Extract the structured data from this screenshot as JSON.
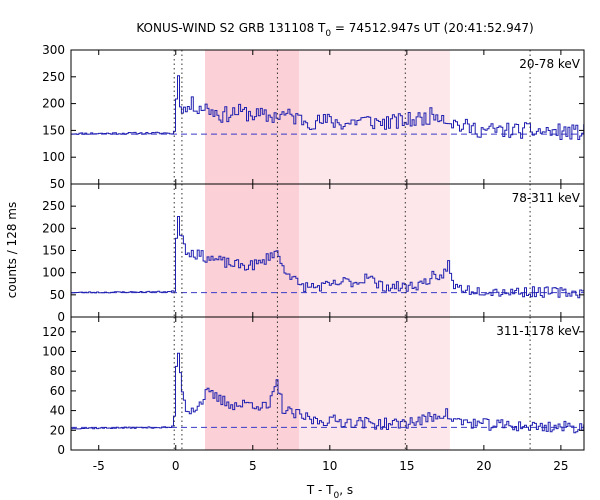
{
  "title": {
    "prefix": "KONUS-WIND S2 GRB 131108 T",
    "sub": "0",
    "suffix": " = 74512.947s UT (20:41:52.947)"
  },
  "xlabel": {
    "prefix": "T - T",
    "sub": "0",
    "suffix": ", s"
  },
  "ylabel": "counts / 128 ms",
  "colors": {
    "curve": "#1f1fb0",
    "background_fit": "#3b3bc8",
    "shade_light": "#fde7ea",
    "shade_dark": "#fbd0d6",
    "vline": "#333333",
    "axis": "#000000"
  },
  "chart_data": {
    "type": "line",
    "xlim": [
      -6.8,
      26.5
    ],
    "xticks": [
      -5,
      0,
      5,
      10,
      15,
      20,
      25
    ],
    "xtick_labels": [
      "-5",
      "0",
      "5",
      "10",
      "15",
      "20",
      "25"
    ],
    "vlines": [
      -0.1,
      0.4,
      6.6,
      14.9,
      23.0
    ],
    "shaded_regions": [
      {
        "x0": 1.9,
        "x1": 17.8,
        "shade": "light"
      },
      {
        "x0": 1.9,
        "x1": 8.0,
        "shade": "dark"
      }
    ],
    "panels": [
      {
        "label": "20-78 keV",
        "ylim": [
          50,
          300
        ],
        "yticks": [
          50,
          100,
          150,
          200,
          250,
          300
        ],
        "background": 143,
        "anchors": [
          [
            -6.8,
            144
          ],
          [
            -0.4,
            145
          ],
          [
            -0.1,
            142
          ],
          [
            0.0,
            180
          ],
          [
            0.1,
            268
          ],
          [
            0.3,
            205
          ],
          [
            0.6,
            185
          ],
          [
            1.0,
            198
          ],
          [
            2.0,
            192
          ],
          [
            3.0,
            178
          ],
          [
            4.0,
            185
          ],
          [
            5.0,
            180
          ],
          [
            6.0,
            175
          ],
          [
            7.0,
            180
          ],
          [
            8.0,
            172
          ],
          [
            9.0,
            165
          ],
          [
            10.0,
            168
          ],
          [
            11.0,
            162
          ],
          [
            12.0,
            170
          ],
          [
            13.0,
            165
          ],
          [
            14.0,
            165
          ],
          [
            15.0,
            168
          ],
          [
            16.0,
            172
          ],
          [
            17.0,
            182
          ],
          [
            17.8,
            168
          ],
          [
            18.5,
            158
          ],
          [
            20.0,
            150
          ],
          [
            22.0,
            150
          ],
          [
            24.0,
            148
          ],
          [
            26.5,
            146
          ]
        ],
        "noise": 15,
        "seed": 11
      },
      {
        "label": "78-311 keV",
        "ylim": [
          0,
          300
        ],
        "yticks": [
          0,
          50,
          100,
          150,
          200,
          250
        ],
        "background": 55,
        "anchors": [
          [
            -6.8,
            55
          ],
          [
            -0.4,
            57
          ],
          [
            -0.1,
            58
          ],
          [
            0.0,
            110
          ],
          [
            0.1,
            255
          ],
          [
            0.3,
            195
          ],
          [
            0.7,
            150
          ],
          [
            1.5,
            140
          ],
          [
            2.5,
            130
          ],
          [
            3.5,
            120
          ],
          [
            4.5,
            115
          ],
          [
            5.5,
            120
          ],
          [
            6.5,
            150
          ],
          [
            7.0,
            110
          ],
          [
            7.5,
            95
          ],
          [
            8.0,
            70
          ],
          [
            9.0,
            68
          ],
          [
            10.0,
            70
          ],
          [
            11.0,
            80
          ],
          [
            12.0,
            78
          ],
          [
            12.5,
            100
          ],
          [
            13.0,
            72
          ],
          [
            14.0,
            68
          ],
          [
            15.0,
            68
          ],
          [
            16.0,
            75
          ],
          [
            16.7,
            92
          ],
          [
            17.0,
            72
          ],
          [
            17.7,
            122
          ],
          [
            18.0,
            70
          ],
          [
            19.0,
            62
          ],
          [
            21.0,
            58
          ],
          [
            24.0,
            56
          ],
          [
            26.5,
            55
          ]
        ],
        "noise": 12,
        "seed": 23
      },
      {
        "label": "311-1178 keV",
        "ylim": [
          0,
          135
        ],
        "yticks": [
          0,
          20,
          40,
          60,
          80,
          100,
          120
        ],
        "background": 23,
        "anchors": [
          [
            -6.8,
            22
          ],
          [
            -0.4,
            23
          ],
          [
            -0.1,
            24
          ],
          [
            0.0,
            60
          ],
          [
            0.1,
            115
          ],
          [
            0.3,
            75
          ],
          [
            0.7,
            40
          ],
          [
            1.5,
            45
          ],
          [
            2.0,
            58
          ],
          [
            3.0,
            50
          ],
          [
            4.0,
            45
          ],
          [
            5.0,
            48
          ],
          [
            6.0,
            42
          ],
          [
            6.6,
            68
          ],
          [
            7.0,
            40
          ],
          [
            8.0,
            35
          ],
          [
            9.0,
            30
          ],
          [
            10.0,
            30
          ],
          [
            12.0,
            28
          ],
          [
            14.0,
            26
          ],
          [
            16.0,
            30
          ],
          [
            17.5,
            38
          ],
          [
            18.0,
            30
          ],
          [
            20.0,
            26
          ],
          [
            23.0,
            24
          ],
          [
            26.5,
            23
          ]
        ],
        "noise": 6,
        "seed": 37
      }
    ]
  }
}
